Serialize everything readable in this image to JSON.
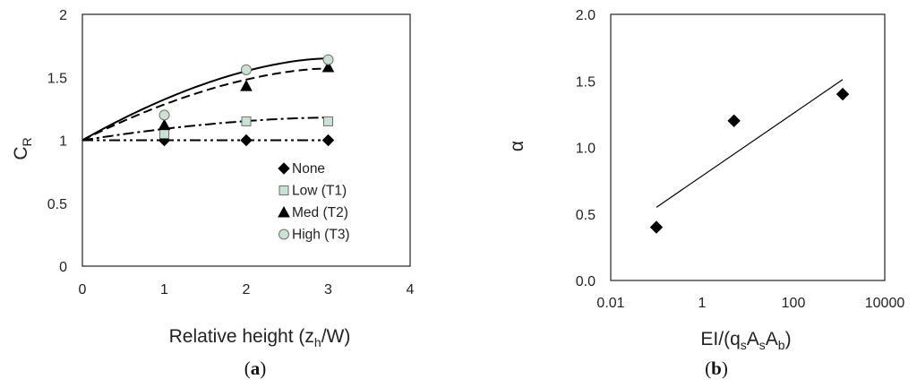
{
  "chart_data": [
    {
      "panel": "(a)",
      "type": "scatter",
      "xlabel": "Relative height (zh/W)",
      "xlabel_parts": {
        "main": "Relative height (z",
        "sub": "h",
        "tail": "/W)"
      },
      "ylabel": "CR",
      "ylabel_parts": {
        "main": "C",
        "sub": "R"
      },
      "xlim": [
        0,
        4
      ],
      "ylim": [
        0,
        2
      ],
      "xticks": [
        "0",
        "1",
        "2",
        "3",
        "4"
      ],
      "yticks": [
        "0",
        "0.5",
        "1",
        "1.5",
        "2"
      ],
      "legend_position": "lower-right",
      "series": [
        {
          "name": "None",
          "marker": "diamond",
          "fill": "#000000",
          "stroke": "#000000",
          "x": [
            1,
            2,
            3
          ],
          "y": [
            1.0,
            1.0,
            1.0
          ],
          "fit_style": "dash-dot-dot",
          "fit_y_at_3": 1.0
        },
        {
          "name": "Low (T1)",
          "marker": "square",
          "fill": "#c8e2d4",
          "stroke": "#6f6f6f",
          "x": [
            1,
            2,
            3
          ],
          "y": [
            1.05,
            1.15,
            1.15
          ],
          "fit_style": "dash-dot",
          "fit_y_at_3": 1.18
        },
        {
          "name": "Med (T2)",
          "marker": "triangle",
          "fill": "#000000",
          "stroke": "#000000",
          "x": [
            1,
            2,
            3
          ],
          "y": [
            1.12,
            1.43,
            1.58
          ],
          "fit_style": "dashed",
          "fit_y_at_3": 1.57
        },
        {
          "name": "High (T3)",
          "marker": "circle",
          "fill": "#c8e2d4",
          "stroke": "#6f6f6f",
          "x": [
            1,
            2,
            3
          ],
          "y": [
            1.2,
            1.56,
            1.64
          ],
          "fit_style": "solid",
          "fit_y_at_3": 1.65
        }
      ]
    },
    {
      "panel": "(b)",
      "type": "scatter",
      "xlabel": "EI/(qsAsAb)",
      "xlabel_parts": {
        "main": "EI/(q",
        "s1": "s",
        "mid": "A",
        "s2": "s",
        "mid2": "A",
        "s3": "b",
        "tail": ")"
      },
      "ylabel": "α",
      "xscale": "log",
      "xlim": [
        0.01,
        10000
      ],
      "ylim": [
        0,
        2
      ],
      "xticks": [
        "0.01",
        "1",
        "100",
        "10000"
      ],
      "yticks": [
        "0.0",
        "0.5",
        "1.0",
        "1.5",
        "2.0"
      ],
      "series": [
        {
          "marker": "diamond",
          "fill": "#000000",
          "x": [
            0.1,
            5,
            1200
          ],
          "y": [
            0.4,
            1.2,
            1.4
          ]
        }
      ],
      "trendline": {
        "x": [
          0.1,
          1200
        ],
        "y": [
          0.55,
          1.51
        ]
      }
    }
  ],
  "captions": {
    "a": "a",
    "b": "b"
  }
}
